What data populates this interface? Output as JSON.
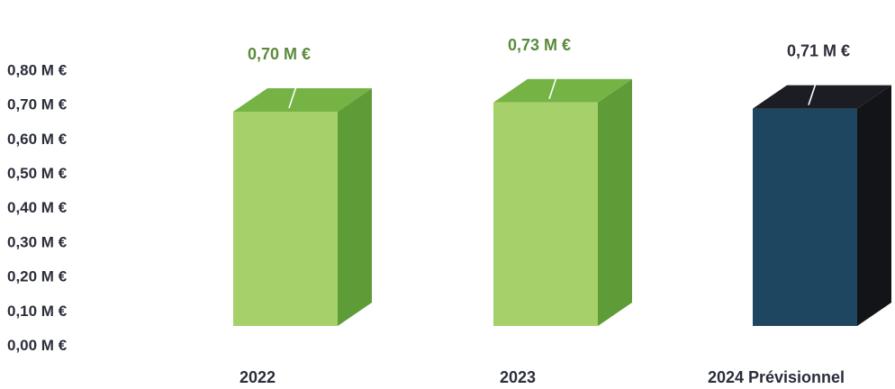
{
  "chart_data": {
    "type": "bar",
    "title": "",
    "xlabel": "",
    "ylabel": "",
    "categories": [
      "2022",
      "2023",
      "2024 Prévisionnel"
    ],
    "values": [
      0.7,
      0.73,
      0.71
    ],
    "data_labels": [
      "0,70 M €",
      "0,73 M €",
      "0,71 M €"
    ],
    "y_tick_labels": [
      "0,80 M €",
      "0,70 M €",
      "0,60 M €",
      "0,50 M €",
      "0,40 M €",
      "0,30 M €",
      "0,20 M €",
      "0,10 M €",
      "0,00 M €"
    ],
    "y_tick_values": [
      0.8,
      0.7,
      0.6,
      0.5,
      0.4,
      0.3,
      0.2,
      0.1,
      0.0
    ],
    "ylim": [
      0,
      0.8
    ],
    "grid": false,
    "legend": "none",
    "style": "3d-columns",
    "colors": {
      "actual_front": "#a6d06a",
      "actual_side": "#5e9c37",
      "actual_top": "#75b344",
      "actual_label": "#5a8a3c",
      "forecast_front": "#1f4660",
      "forecast_side": "#121418",
      "forecast_top": "#1b1d22",
      "forecast_label": "#2b2e3a",
      "axis_text": "#2b2e3a"
    },
    "bar_kinds": [
      "actual",
      "actual",
      "forecast"
    ]
  }
}
